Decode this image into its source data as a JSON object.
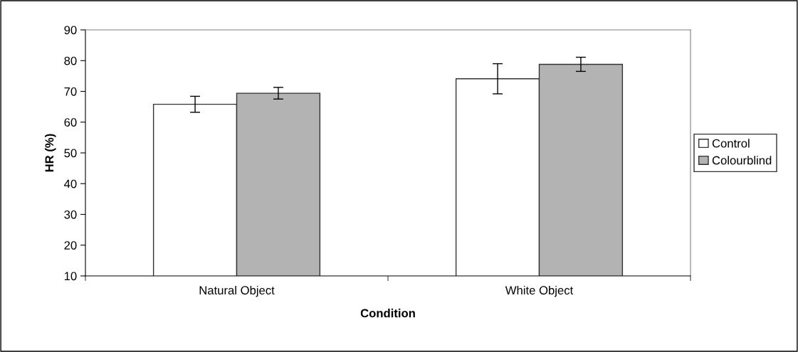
{
  "chart_data": {
    "type": "bar",
    "xlabel": "Condition",
    "ylabel": "HR (%)",
    "categories": [
      "Natural Object",
      "White Object"
    ],
    "series": [
      {
        "name": "Control",
        "color": "#ffffff",
        "values": [
          65.8,
          74.1
        ],
        "errors": [
          2.6,
          4.9
        ]
      },
      {
        "name": "Colourblind",
        "color": "#b3b3b3",
        "values": [
          69.4,
          78.8
        ],
        "errors": [
          1.9,
          2.3
        ]
      }
    ],
    "ylim": [
      10,
      90
    ],
    "yticks": [
      10,
      20,
      30,
      40,
      50,
      60,
      70,
      80,
      90
    ],
    "grid": false,
    "legend": "right"
  }
}
